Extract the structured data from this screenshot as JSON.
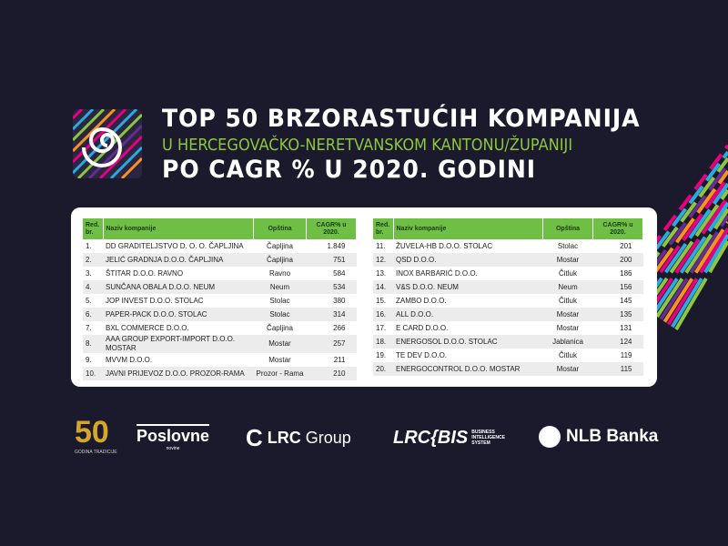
{
  "title": {
    "line1": "TOP 50 BRZORASTUĆIH KOMPANIJA",
    "line2": "U HERCEGOVAČKO-NERETVANSKOM KANTONU/ŽUPANIJI",
    "line3": "PO CAGR % U 2020. GODINI"
  },
  "headers": {
    "rank": "Red. br.",
    "name": "Naziv kompanije",
    "municipality": "Opština",
    "cagr": "CAGR% u 2020."
  },
  "rows": [
    [
      "1.",
      "DD GRADITELJSTVO D. O. O. ČAPLJINA",
      "Čapljina",
      "1.849"
    ],
    [
      "2.",
      "JELIĆ GRADNJA D.O.O. ČAPLJINA",
      "Čapljina",
      "751"
    ],
    [
      "3.",
      "ŠTITAR D.O.O. RAVNO",
      "Ravno",
      "584"
    ],
    [
      "4.",
      "SUNČANA OBALA D.O.O. NEUM",
      "Neum",
      "534"
    ],
    [
      "5.",
      "JOP INVEST D.O.O. STOLAC",
      "Stolac",
      "380"
    ],
    [
      "6.",
      "PAPER-PACK D.O.O. STOLAC",
      "Stolac",
      "314"
    ],
    [
      "7.",
      "BXL COMMERCE D.O.O.",
      "Čapljina",
      "266"
    ],
    [
      "8.",
      "AAA GROUP EXPORT-IMPORT D.O.O. MOSTAR",
      "Mostar",
      "257"
    ],
    [
      "9.",
      "MVVM D.O.O.",
      "Mostar",
      "211"
    ],
    [
      "10.",
      "JAVNI PRIJEVOZ D.O.O. PROZOR-RAMA",
      "Prozor - Rama",
      "210"
    ],
    [
      "11.",
      "ŽUVELA-HB D.O.O. STOLAC",
      "Stolac",
      "201"
    ],
    [
      "12.",
      "QSD D.O.O.",
      "Mostar",
      "200"
    ],
    [
      "13.",
      "INOX BARBARIĆ D.O.O.",
      "Čitluk",
      "186"
    ],
    [
      "14.",
      "V&S D.O.O. NEUM",
      "Neum",
      "156"
    ],
    [
      "15.",
      "ZAMBO D.O.O.",
      "Čitluk",
      "145"
    ],
    [
      "16.",
      "ALL D.O.O.",
      "Mostar",
      "135"
    ],
    [
      "17.",
      "E CARD D.O.O.",
      "Mostar",
      "131"
    ],
    [
      "18.",
      "ENERGOSOL D.O.O. STOLAC",
      "Jablanica",
      "124"
    ],
    [
      "19.",
      "TE DEV D.O.O.",
      "Čitluk",
      "119"
    ],
    [
      "20.",
      "ENERGOCONTROL D.O.O. MOSTAR",
      "Mostar",
      "115"
    ]
  ],
  "logos": {
    "poslovne": "Poslovne",
    "poslovne_sub": "novine",
    "fifty": "50",
    "tradition": "GODINA TRADICIJE",
    "lrc": "LRC",
    "group": "Group",
    "lrcbis": "LRC{BIS",
    "bis_sub": "BUSINESS INTELLIGENCE SYSTEM",
    "nlb": "NLB Banka"
  },
  "colors": {
    "background": "#1b1a2c",
    "accent_green": "#6fbf44",
    "title_green": "#8dc63f"
  }
}
